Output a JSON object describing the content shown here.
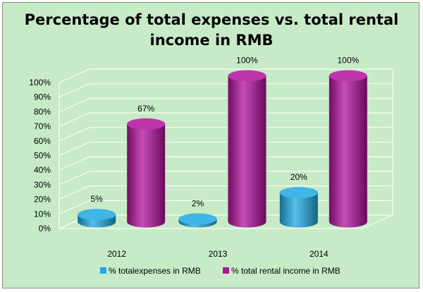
{
  "chart_data": {
    "type": "bar",
    "style": "3d-cylinder",
    "title": "Percentage of total expenses vs. total rental\nincome in RMB",
    "categories": [
      "2012",
      "2013",
      "2014"
    ],
    "series": [
      {
        "name": "% totalexpenses in RMB",
        "values": [
          5,
          2,
          20
        ],
        "labels": [
          "5%",
          "2%",
          "20%"
        ],
        "color": "#1fa9e1"
      },
      {
        "name": "% total rental income in RMB",
        "values": [
          67,
          100,
          100
        ],
        "labels": [
          "67%",
          "100%",
          "100%"
        ],
        "color": "#b2119c"
      }
    ],
    "y_ticks": [
      "0%",
      "10%",
      "20%",
      "30%",
      "40%",
      "50%",
      "60%",
      "70%",
      "80%",
      "90%",
      "100%"
    ],
    "ylim": [
      0,
      100
    ],
    "grid": true,
    "legend_position": "bottom",
    "colors": {
      "background": "#c7ebc7",
      "grid": "#ffffff"
    }
  }
}
